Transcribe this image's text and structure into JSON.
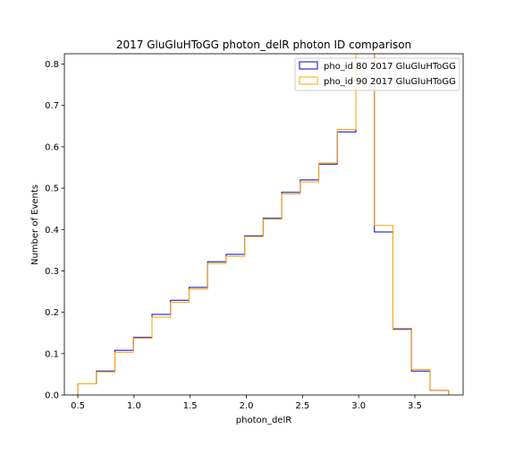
{
  "chart_data": {
    "type": "step-histogram",
    "title": "2017 GluGluHToGG photon_delR photon ID comparison",
    "xlabel": "photon_delR",
    "ylabel": "Number of Events",
    "xlim": [
      0.38,
      3.93
    ],
    "ylim": [
      0,
      0.825
    ],
    "xticks": [
      "0.5",
      "1.0",
      "1.5",
      "2.0",
      "2.5",
      "3.0",
      "3.5"
    ],
    "yticks": [
      "0.0",
      "0.1",
      "0.2",
      "0.3",
      "0.4",
      "0.5",
      "0.6",
      "0.7",
      "0.8"
    ],
    "legend_position": "top-right",
    "grid": false,
    "bin_edges": [
      0.5,
      0.665,
      0.83,
      0.995,
      1.16,
      1.325,
      1.49,
      1.655,
      1.82,
      1.985,
      2.15,
      2.315,
      2.48,
      2.645,
      2.81,
      2.975,
      3.14,
      3.305,
      3.47,
      3.635,
      3.8
    ],
    "series": [
      {
        "name": "pho_id 80 2017 GluGluHToGG",
        "color": "#0000cc",
        "values": [
          0.027,
          0.058,
          0.108,
          0.139,
          0.195,
          0.229,
          0.26,
          0.322,
          0.34,
          0.385,
          0.427,
          0.49,
          0.52,
          0.558,
          0.636,
          0.83,
          0.394,
          0.16,
          0.058,
          0.011
        ]
      },
      {
        "name": "pho_id 90 2017 GluGluHToGG",
        "color": "#ffa500",
        "values": [
          0.027,
          0.056,
          0.103,
          0.137,
          0.188,
          0.224,
          0.256,
          0.318,
          0.335,
          0.383,
          0.425,
          0.486,
          0.515,
          0.561,
          0.642,
          0.83,
          0.41,
          0.158,
          0.062,
          0.011
        ]
      }
    ]
  }
}
